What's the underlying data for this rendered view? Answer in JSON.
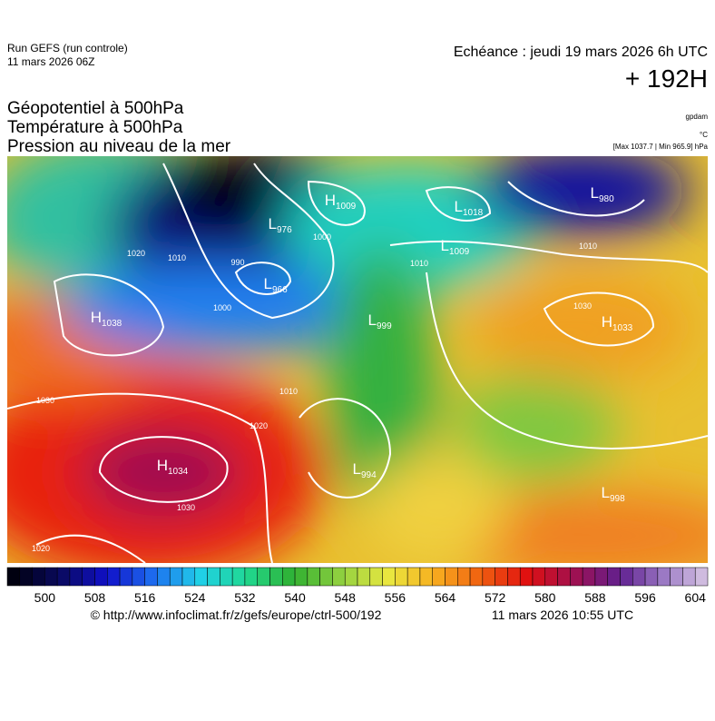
{
  "header": {
    "run": "Run GEFS (run controle)",
    "run_date": "11 mars 2026 06Z",
    "valid": "Echéance : jeudi 19 mars 2026 6h UTC",
    "lead": "+ 192H"
  },
  "titles": [
    "Géopotentiel à 500hPa",
    "Température à 500hPa",
    "Pression au niveau de la mer"
  ],
  "units": {
    "geopotential": "gpdam",
    "temperature": "°C",
    "pressure": "[Max 1037.7 | Min 965.9] hPa"
  },
  "centers": [
    {
      "letter": "H",
      "value": 1009
    },
    {
      "letter": "L",
      "value": 976
    },
    {
      "letter": "L",
      "value": 966
    },
    {
      "letter": "L",
      "value": 1018
    },
    {
      "letter": "L",
      "value": 1009
    },
    {
      "letter": "H",
      "value": 1038
    },
    {
      "letter": "L",
      "value": 999
    },
    {
      "letter": "H",
      "value": 1033
    },
    {
      "letter": "H",
      "value": 1034
    },
    {
      "letter": "L",
      "value": 994
    },
    {
      "letter": "L",
      "value": 998
    },
    {
      "letter": "L",
      "value": 980
    }
  ],
  "isobar_labels": [
    1020,
    1010,
    1000,
    1030,
    1020,
    1010,
    1030,
    1020,
    1010,
    1010,
    1030,
    1000,
    990
  ],
  "colorbar": {
    "lim": [
      494,
      606
    ],
    "step": 2,
    "ticks": [
      500,
      508,
      516,
      524,
      532,
      540,
      548,
      556,
      564,
      572,
      580,
      588,
      596,
      604
    ],
    "colors": [
      "#000010",
      "#0a0a60",
      "#1010c8",
      "#1e6ef0",
      "#20d0e8",
      "#20d890",
      "#30b030",
      "#90d040",
      "#e8e840",
      "#f8b020",
      "#f06010",
      "#e01010",
      "#a01050",
      "#602090",
      "#a080c8",
      "#e0d0e8"
    ]
  },
  "footer": {
    "url": "© http://www.infoclimat.fr/z/gefs/europe/ctrl-500/192",
    "generated": "11 mars 2026 10:55 UTC"
  }
}
